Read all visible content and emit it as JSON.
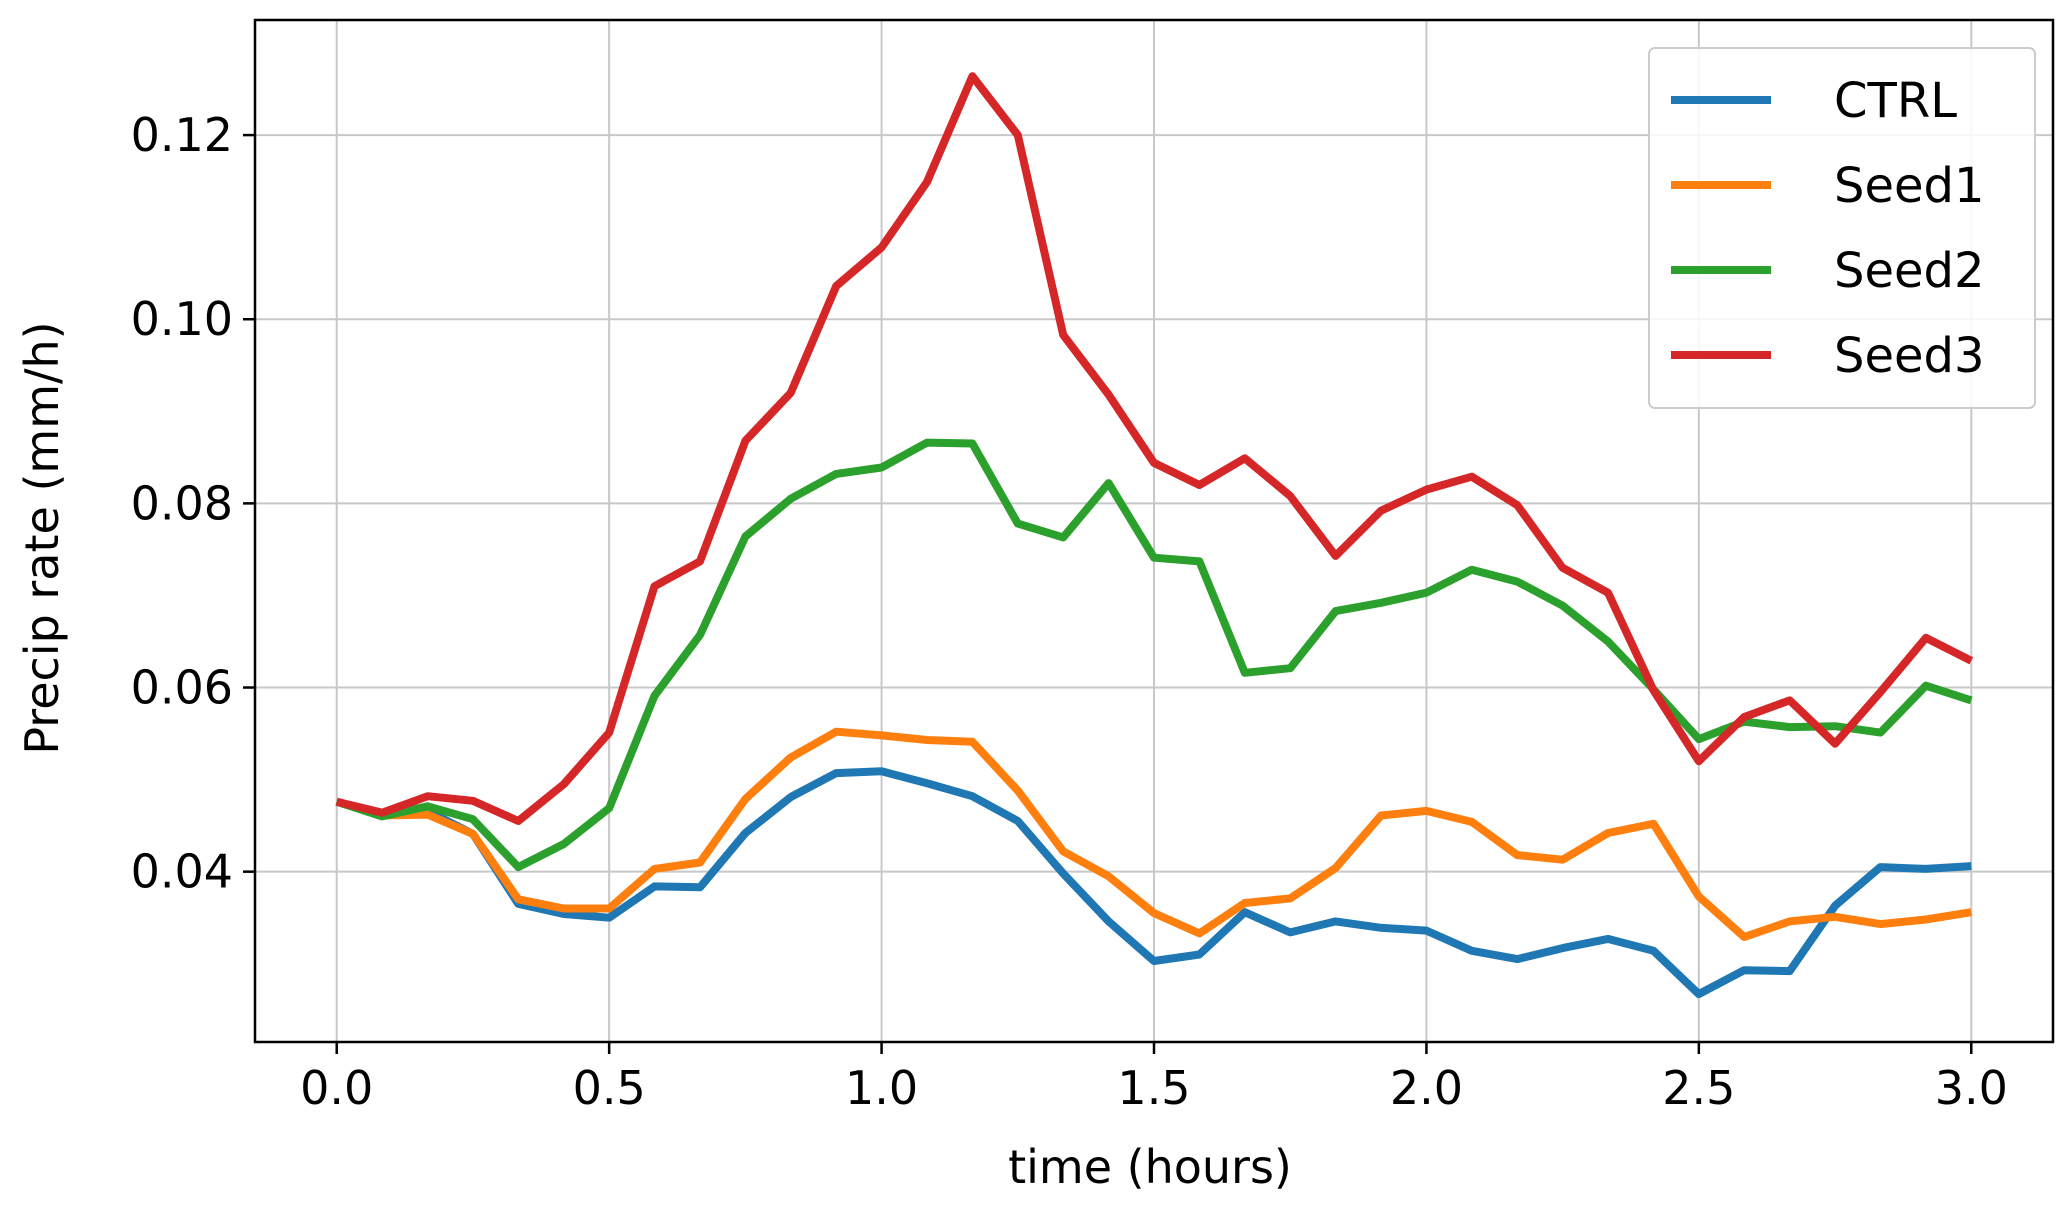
{
  "chart_data": {
    "type": "line",
    "title": "",
    "xlabel": "time (hours)",
    "ylabel": "Precip rate (mm/h)",
    "xlim": [
      -0.15,
      3.15
    ],
    "ylim": [
      0.0215,
      0.1325
    ],
    "xticks": [
      0.0,
      0.5,
      1.0,
      1.5,
      2.0,
      2.5,
      3.0
    ],
    "xtick_labels": [
      "0.0",
      "0.5",
      "1.0",
      "1.5",
      "2.0",
      "2.5",
      "3.0"
    ],
    "yticks": [
      0.04,
      0.06,
      0.08,
      0.1,
      0.12
    ],
    "ytick_labels": [
      "0.04",
      "0.06",
      "0.08",
      "0.10",
      "0.12"
    ],
    "grid": true,
    "legend_position": "top-right",
    "x": [
      0.0,
      0.0833,
      0.1667,
      0.25,
      0.3333,
      0.4167,
      0.5,
      0.5833,
      0.6667,
      0.75,
      0.8333,
      0.9167,
      1.0,
      1.0833,
      1.1667,
      1.25,
      1.3333,
      1.4167,
      1.5,
      1.5833,
      1.6667,
      1.75,
      1.8333,
      1.9167,
      2.0,
      2.0833,
      2.1667,
      2.25,
      2.3333,
      2.4167,
      2.5,
      2.5833,
      2.6667,
      2.75,
      2.8333,
      2.9167,
      3.0
    ],
    "series": [
      {
        "name": "CTRL",
        "color": "#1f77b4",
        "values": [
          0.0476,
          0.0461,
          0.0466,
          0.0441,
          0.0365,
          0.0354,
          0.035,
          0.0384,
          0.0383,
          0.0442,
          0.0481,
          0.0507,
          0.0509,
          0.0496,
          0.0482,
          0.0455,
          0.0398,
          0.0346,
          0.0303,
          0.031,
          0.0356,
          0.0334,
          0.0346,
          0.0339,
          0.0336,
          0.0314,
          0.0305,
          0.0317,
          0.0327,
          0.0314,
          0.0267,
          0.0293,
          0.0292,
          0.0363,
          0.0405,
          0.0403,
          0.0406
        ]
      },
      {
        "name": "Seed1",
        "color": "#ff7f0e",
        "values": [
          0.0476,
          0.0461,
          0.0462,
          0.0441,
          0.037,
          0.036,
          0.036,
          0.0403,
          0.041,
          0.0479,
          0.0524,
          0.0552,
          0.0548,
          0.0543,
          0.0541,
          0.0488,
          0.0422,
          0.0395,
          0.0355,
          0.0333,
          0.0366,
          0.0371,
          0.0404,
          0.0461,
          0.0466,
          0.0454,
          0.0418,
          0.0413,
          0.0442,
          0.0452,
          0.0373,
          0.0329,
          0.0346,
          0.0351,
          0.0343,
          0.0348,
          0.0356
        ]
      },
      {
        "name": "Seed2",
        "color": "#2ca02c",
        "values": [
          0.0476,
          0.046,
          0.0471,
          0.0457,
          0.0405,
          0.043,
          0.0469,
          0.0591,
          0.0657,
          0.0764,
          0.0805,
          0.0832,
          0.0839,
          0.0866,
          0.0865,
          0.0778,
          0.0763,
          0.0822,
          0.0741,
          0.0737,
          0.0616,
          0.0621,
          0.0683,
          0.0692,
          0.0703,
          0.0728,
          0.0715,
          0.0689,
          0.065,
          0.0598,
          0.0544,
          0.0563,
          0.0557,
          0.0558,
          0.0551,
          0.0602,
          0.0586
        ]
      },
      {
        "name": "Seed3",
        "color": "#d62728",
        "values": [
          0.0476,
          0.0464,
          0.0482,
          0.0477,
          0.0455,
          0.0495,
          0.0551,
          0.071,
          0.0737,
          0.0868,
          0.092,
          0.1036,
          0.1078,
          0.1149,
          0.1264,
          0.12,
          0.0983,
          0.0918,
          0.0844,
          0.082,
          0.0849,
          0.0808,
          0.0743,
          0.0792,
          0.0815,
          0.0829,
          0.0798,
          0.073,
          0.0703,
          0.0597,
          0.052,
          0.0568,
          0.0586,
          0.0539,
          0.0595,
          0.0654,
          0.0629
        ]
      }
    ]
  }
}
